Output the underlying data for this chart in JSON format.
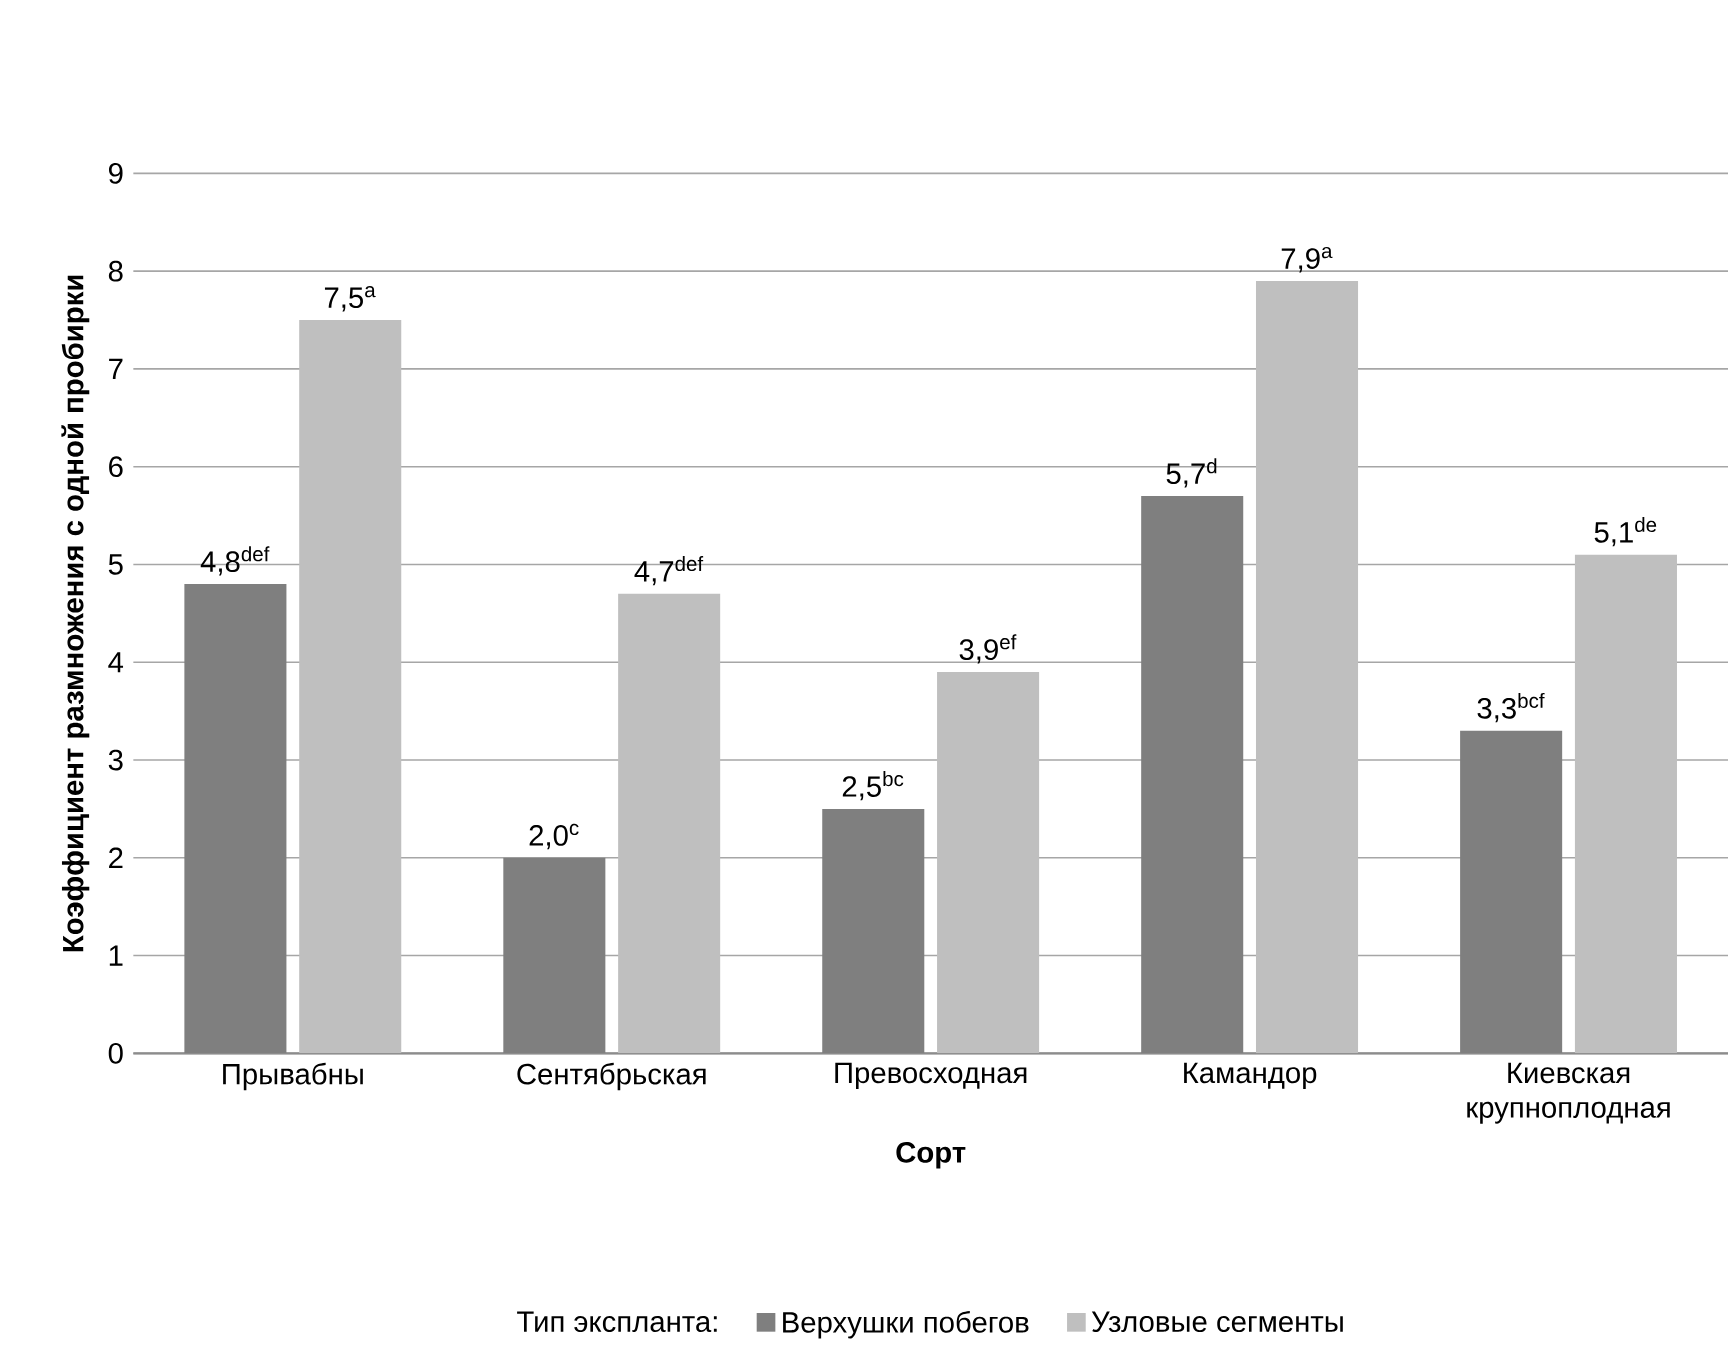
{
  "chart_data": {
    "type": "bar",
    "xlabel": "Сорт",
    "ylabel": "Коэффициент размножения с одной пробирки",
    "legend_title": "Тип экспланта:",
    "categories": [
      "Прывабны",
      "Сентябрьская",
      "Превосходная",
      "Камандор",
      "Киевская крупноплодная"
    ],
    "series": [
      {
        "name": "Верхушки побегов",
        "color": "#7f7f7f",
        "values": [
          4.8,
          2.0,
          2.5,
          5.7,
          3.3
        ],
        "value_labels": [
          "4,8$^{def}$",
          "2,0$^{c}$",
          "2,5$^{bc}$",
          "5,7$^{d}$",
          "3,3$^{bcf}$"
        ]
      },
      {
        "name": "Узловые сегменты",
        "color": "#bfbfbf",
        "values": [
          7.5,
          4.7,
          3.9,
          7.9,
          5.1
        ],
        "value_labels": [
          "7,5$^{a}$",
          "4,7$^{def}$",
          "3,9$^{ef}$",
          "7,9$^{a}$",
          "5,1$^{de}$"
        ]
      }
    ],
    "ylim": [
      0,
      9
    ],
    "yticks": [
      0,
      1,
      2,
      3,
      4,
      5,
      6,
      7,
      8,
      9
    ],
    "grid": "y",
    "legend": "bottom"
  }
}
